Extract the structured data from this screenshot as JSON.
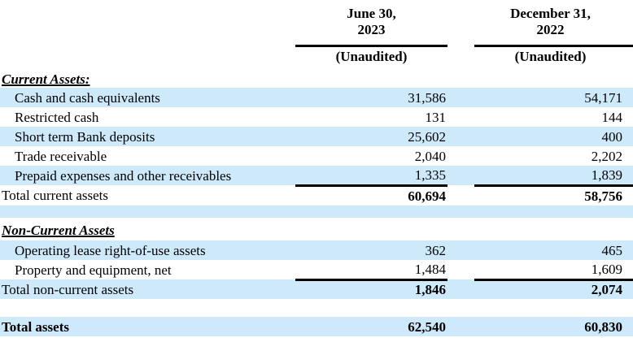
{
  "page": {
    "background_color": "#ffffff",
    "row_shade_color": "#cde9fa",
    "rule_color": "#000000"
  },
  "header": {
    "col1_line1": "June 30,",
    "col1_line2": "2023",
    "col1_sub": "(Unaudited)",
    "col2_line1": "December 31,",
    "col2_line2": "2022",
    "col2_sub": "(Unaudited)"
  },
  "current_assets": {
    "heading": "Current Assets:",
    "rows": [
      {
        "label": "Cash and cash equivalents",
        "jun2023": "31,586",
        "dec2022": "54,171"
      },
      {
        "label": "Restricted cash",
        "jun2023": "131",
        "dec2022": "144"
      },
      {
        "label": "Short term Bank deposits",
        "jun2023": "25,602",
        "dec2022": "400"
      },
      {
        "label": "Trade receivable",
        "jun2023": "2,040",
        "dec2022": "2,202"
      },
      {
        "label": "Prepaid expenses and other receivables",
        "jun2023": "1,335",
        "dec2022": "1,839"
      }
    ],
    "total": {
      "label": "Total current assets",
      "jun2023": "60,694",
      "dec2022": "58,756"
    }
  },
  "non_current_assets": {
    "heading": "Non-Current Assets",
    "rows": [
      {
        "label": "Operating lease right-of-use assets",
        "jun2023": "362",
        "dec2022": "465"
      },
      {
        "label": "Property and equipment, net",
        "jun2023": "1,484",
        "dec2022": "1,609"
      }
    ],
    "total": {
      "label": "Total non-current assets",
      "jun2023": "1,846",
      "dec2022": "2,074"
    }
  },
  "grand_total": {
    "label": "Total assets",
    "jun2023": "62,540",
    "dec2022": "60,830"
  }
}
